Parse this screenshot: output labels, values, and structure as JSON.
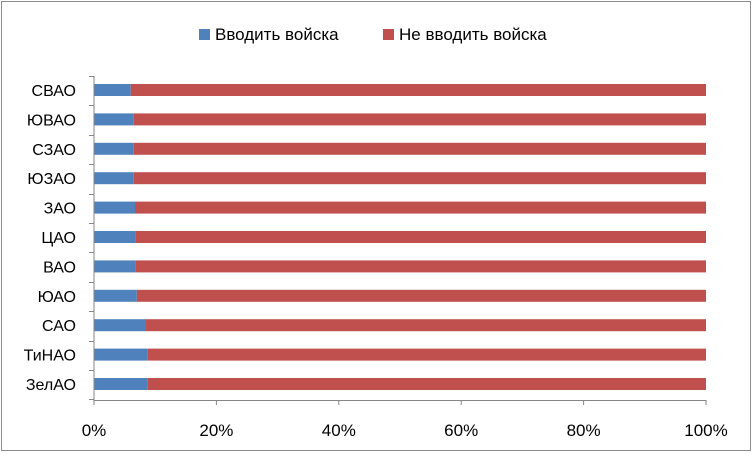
{
  "chart_data": {
    "type": "bar",
    "orientation": "horizontal",
    "stacked": "percent",
    "categories": [
      "СВАО",
      "ЮВАО",
      "СЗАО",
      "ЮЗАО",
      "ЗАО",
      "ЦАО",
      "ВАО",
      "ЮАО",
      "САО",
      "ТиНАО",
      "ЗелАО"
    ],
    "series": [
      {
        "name": "Вводить войска",
        "color": "#4f81bd",
        "values": [
          6,
          6.5,
          6.5,
          6.5,
          6.7,
          6.8,
          6.8,
          7,
          8.5,
          8.7,
          8.7
        ]
      },
      {
        "name": "Не вводить войска",
        "color": "#c0504d",
        "values": [
          94,
          93.5,
          93.5,
          93.5,
          93.3,
          93.2,
          93.2,
          93,
          91.5,
          91.3,
          91.3
        ]
      }
    ],
    "xlim": [
      0,
      100
    ],
    "xticks": [
      "0%",
      "20%",
      "40%",
      "60%",
      "80%",
      "100%"
    ],
    "title": "",
    "xlabel": "",
    "ylabel": "",
    "legend_position": "top",
    "grid": false
  }
}
